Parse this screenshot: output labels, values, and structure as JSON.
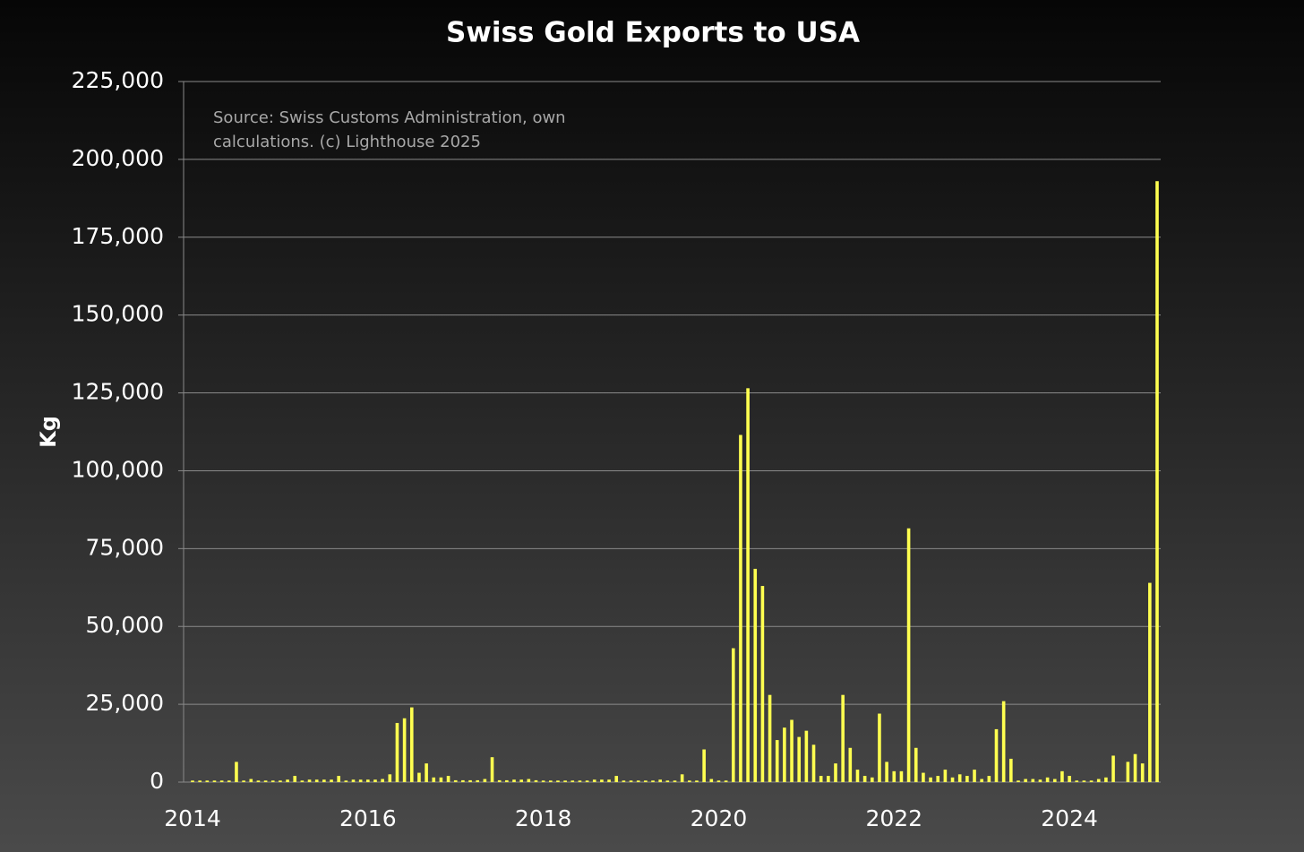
{
  "chart_data": {
    "type": "bar",
    "title": "Swiss Gold Exports to USA",
    "y_label": "Kg",
    "annotation": [
      "Source: Swiss Customs Administration, own",
      "calculations. (c) Lighthouse 2025"
    ],
    "color": "#ffff50",
    "categories": [
      "2014",
      null,
      null,
      null,
      null,
      null,
      null,
      null,
      null,
      null,
      null,
      null,
      null,
      null,
      null,
      null,
      null,
      null,
      null,
      null,
      null,
      null,
      null,
      null,
      "2016",
      null,
      null,
      null,
      null,
      null,
      null,
      null,
      null,
      null,
      null,
      null,
      null,
      null,
      null,
      null,
      null,
      null,
      null,
      null,
      null,
      null,
      null,
      null,
      "2018",
      null,
      null,
      null,
      null,
      null,
      null,
      null,
      null,
      null,
      null,
      null,
      null,
      null,
      null,
      null,
      null,
      null,
      null,
      null,
      null,
      null,
      null,
      null,
      "2020",
      null,
      null,
      null,
      null,
      null,
      null,
      null,
      null,
      null,
      null,
      null,
      null,
      null,
      null,
      null,
      null,
      null,
      null,
      null,
      null,
      null,
      null,
      null,
      "2022",
      null,
      null,
      null,
      null,
      null,
      null,
      null,
      null,
      null,
      null,
      null,
      null,
      null,
      null,
      null,
      null,
      null,
      null,
      null,
      null,
      null,
      null,
      null,
      "2024",
      null,
      null,
      null,
      null,
      null,
      null,
      null,
      null,
      null,
      null,
      null,
      null
    ],
    "values": [
      500,
      500,
      500,
      500,
      500,
      500,
      6500,
      500,
      1000,
      500,
      500,
      500,
      500,
      800,
      2000,
      500,
      800,
      800,
      800,
      800,
      2000,
      500,
      800,
      800,
      800,
      800,
      1000,
      2500,
      19000,
      20500,
      24000,
      3000,
      6000,
      1500,
      1500,
      2000,
      600,
      600,
      600,
      600,
      1000,
      8000,
      600,
      600,
      800,
      800,
      1000,
      600,
      500,
      500,
      500,
      500,
      500,
      500,
      500,
      800,
      800,
      800,
      2000,
      500,
      500,
      500,
      500,
      500,
      800,
      500,
      500,
      2500,
      500,
      500,
      10500,
      1000,
      500,
      500,
      43000,
      111500,
      126500,
      68500,
      63000,
      28000,
      13500,
      17500,
      20000,
      14500,
      16500,
      12000,
      2000,
      2000,
      6000,
      28000,
      11000,
      4000,
      2000,
      1500,
      22000,
      6500,
      3500,
      3500,
      81500,
      11000,
      3000,
      1500,
      2000,
      4000,
      1500,
      2500,
      2000,
      4000,
      1000,
      2000,
      17000,
      26000,
      7500,
      500,
      1000,
      1000,
      800,
      1500,
      1000,
      3500,
      2000,
      500,
      500,
      500,
      1000,
      1500,
      8500,
      0,
      6500,
      9000,
      6000,
      64000,
      193000
    ],
    "ylim": [
      0,
      225000
    ],
    "yticks": [
      0,
      {
        "value": 25000,
        "label": "25,000"
      },
      {
        "value": 50000,
        "label": "50,000"
      },
      {
        "value": 75000,
        "label": "75,000"
      },
      {
        "value": 100000,
        "label": "100,000"
      },
      {
        "value": 125000,
        "label": "125,000"
      },
      {
        "value": 150000,
        "label": "150,000"
      },
      {
        "value": 175000,
        "label": "175,000"
      },
      {
        "value": 200000,
        "label": "200,000"
      },
      {
        "value": 225000,
        "label": "225,000"
      }
    ],
    "grid": true
  }
}
